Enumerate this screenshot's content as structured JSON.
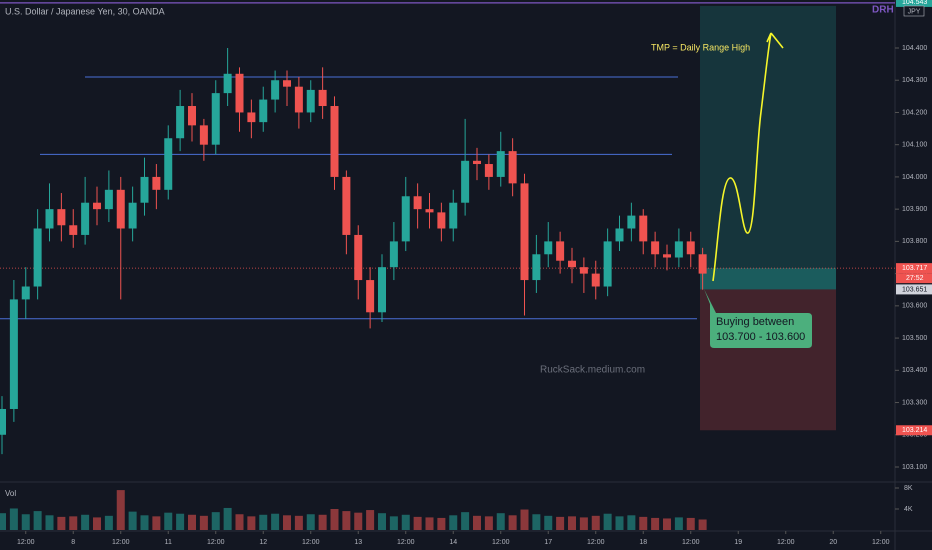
{
  "chart_data": {
    "type": "candlestick",
    "title": "U.S. Dollar / Japanese Yen, 30, OANDA",
    "up_color": "#26a69a",
    "down_color": "#ef5350",
    "open": [
      103.2,
      103.28,
      103.62,
      103.66,
      103.84,
      103.9,
      103.85,
      103.82,
      103.92,
      103.9,
      103.96,
      103.84,
      103.92,
      104.0,
      103.96,
      104.12,
      104.22,
      104.16,
      104.1,
      104.26,
      104.32,
      104.2,
      104.17,
      104.24,
      104.3,
      104.28,
      104.2,
      104.27,
      104.22,
      104.0,
      103.82,
      103.68,
      103.58,
      103.72,
      103.8,
      103.94,
      103.9,
      103.89,
      103.84,
      103.92,
      104.05,
      104.04,
      104.0,
      104.08,
      103.98,
      103.68,
      103.76,
      103.8,
      103.74,
      103.72,
      103.7,
      103.66,
      103.8,
      103.84,
      103.88,
      103.8,
      103.76,
      103.75,
      103.8,
      103.76
    ],
    "high": [
      103.32,
      103.68,
      103.72,
      103.9,
      103.98,
      103.95,
      103.9,
      104.0,
      103.97,
      104.02,
      104.0,
      103.97,
      104.06,
      104.04,
      104.16,
      104.27,
      104.26,
      104.18,
      104.3,
      104.4,
      104.34,
      104.24,
      104.28,
      104.33,
      104.33,
      104.31,
      104.3,
      104.34,
      104.25,
      104.02,
      103.85,
      103.72,
      103.76,
      103.86,
      104.0,
      103.98,
      103.95,
      103.92,
      103.96,
      104.18,
      104.09,
      104.07,
      104.14,
      104.12,
      104.01,
      103.82,
      103.86,
      103.83,
      103.78,
      103.75,
      103.74,
      103.84,
      103.88,
      103.92,
      103.9,
      103.83,
      103.79,
      103.84,
      103.83,
      103.78
    ],
    "low": [
      103.14,
      103.24,
      103.56,
      103.62,
      103.8,
      103.8,
      103.78,
      103.79,
      103.85,
      103.86,
      103.62,
      103.8,
      103.88,
      103.9,
      103.93,
      104.08,
      104.11,
      104.05,
      104.07,
      104.22,
      104.14,
      104.12,
      104.14,
      104.2,
      104.22,
      104.15,
      104.17,
      104.18,
      103.96,
      103.76,
      103.62,
      103.53,
      103.55,
      103.68,
      103.77,
      103.84,
      103.84,
      103.8,
      103.8,
      103.88,
      103.99,
      103.96,
      103.97,
      103.94,
      103.57,
      103.64,
      103.72,
      103.7,
      103.67,
      103.64,
      103.62,
      103.63,
      103.77,
      103.8,
      103.76,
      103.72,
      103.71,
      103.72,
      103.72,
      103.65
    ],
    "close": [
      103.28,
      103.62,
      103.66,
      103.84,
      103.9,
      103.85,
      103.82,
      103.92,
      103.9,
      103.96,
      103.84,
      103.92,
      104.0,
      103.96,
      104.12,
      104.22,
      104.16,
      104.1,
      104.26,
      104.32,
      104.2,
      104.17,
      104.24,
      104.3,
      104.28,
      104.2,
      104.27,
      104.22,
      104.0,
      103.82,
      103.68,
      103.58,
      103.72,
      103.8,
      103.94,
      103.9,
      103.89,
      103.84,
      103.92,
      104.05,
      104.04,
      104.0,
      104.08,
      103.98,
      103.68,
      103.76,
      103.8,
      103.74,
      103.72,
      103.7,
      103.66,
      103.8,
      103.84,
      103.88,
      103.8,
      103.76,
      103.75,
      103.8,
      103.76,
      103.7
    ],
    "volume": [
      3200,
      4100,
      3000,
      3600,
      2800,
      2500,
      2600,
      2900,
      2400,
      2700,
      7600,
      3500,
      2800,
      2600,
      3300,
      3100,
      2900,
      2700,
      3400,
      4200,
      3000,
      2600,
      2900,
      3100,
      2800,
      2700,
      3000,
      2900,
      4000,
      3600,
      3300,
      3800,
      3200,
      2600,
      2900,
      2500,
      2400,
      2300,
      2800,
      3400,
      2700,
      2600,
      3200,
      2800,
      3900,
      3000,
      2700,
      2500,
      2600,
      2400,
      2700,
      3100,
      2600,
      2800,
      2500,
      2300,
      2200,
      2400,
      2300,
      2000
    ],
    "ylim": [
      103.05,
      104.545
    ],
    "yticks": [
      {
        "value": 104.4,
        "label": "104.400"
      },
      {
        "value": 104.3,
        "label": "104.300"
      },
      {
        "value": 104.2,
        "label": "104.200"
      },
      {
        "value": 104.1,
        "label": "104.100"
      },
      {
        "value": 104.0,
        "label": "104.000"
      },
      {
        "value": 103.9,
        "label": "103.900"
      },
      {
        "value": 103.8,
        "label": "103.800"
      },
      {
        "value": 103.7,
        "label": "103.700"
      },
      {
        "value": 103.6,
        "label": "103.600"
      },
      {
        "value": 103.5,
        "label": "103.500"
      },
      {
        "value": 103.4,
        "label": "103.400"
      },
      {
        "value": 103.3,
        "label": "103.300"
      },
      {
        "value": 103.2,
        "label": "103.200"
      },
      {
        "value": 103.1,
        "label": "103.100"
      }
    ],
    "volume_label": "Vol",
    "volume_ticks": [
      {
        "value": 8000,
        "label": "8K"
      },
      {
        "value": 4000,
        "label": "4K"
      }
    ],
    "xticks": [
      {
        "value": 2,
        "label": "12:00"
      },
      {
        "value": 6,
        "label": "8"
      },
      {
        "value": 10,
        "label": "12:00"
      },
      {
        "value": 14,
        "label": "11"
      },
      {
        "value": 18,
        "label": "12:00"
      },
      {
        "value": 22,
        "label": "12"
      },
      {
        "value": 26,
        "label": "12:00"
      },
      {
        "value": 30,
        "label": "13"
      },
      {
        "value": 34,
        "label": "12:00"
      },
      {
        "value": 38,
        "label": "14"
      },
      {
        "value": 42,
        "label": "12:00"
      },
      {
        "value": 46,
        "label": "17"
      },
      {
        "value": 50,
        "label": "12:00"
      },
      {
        "value": 54,
        "label": "18"
      },
      {
        "value": 58,
        "label": "12:00"
      },
      {
        "value": 62,
        "label": "19"
      },
      {
        "value": 66,
        "label": "12:00"
      },
      {
        "value": 70,
        "label": "20"
      },
      {
        "value": 74,
        "label": "12:00"
      }
    ],
    "hlines": [
      104.31,
      104.07,
      103.56
    ],
    "position": {
      "target": 104.543,
      "entry": 103.651,
      "stop": 103.214
    },
    "last_price": 103.717,
    "countdown": "27:52",
    "target_label": "DRH",
    "currency": "JPY",
    "annotation": "TMP = Daily Range High",
    "callout": [
      "Buying between",
      "103.700 - 103.600"
    ],
    "watermark": "RuckSack.medium.com"
  }
}
